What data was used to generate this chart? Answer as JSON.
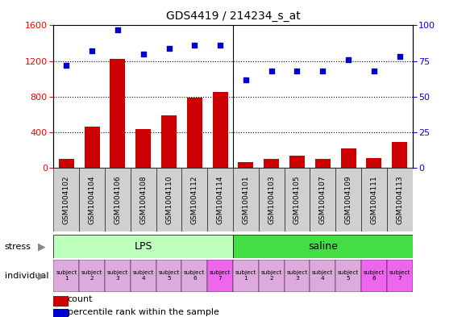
{
  "title": "GDS4419 / 214234_s_at",
  "samples": [
    "GSM1004102",
    "GSM1004104",
    "GSM1004106",
    "GSM1004108",
    "GSM1004110",
    "GSM1004112",
    "GSM1004114",
    "GSM1004101",
    "GSM1004103",
    "GSM1004105",
    "GSM1004107",
    "GSM1004109",
    "GSM1004111",
    "GSM1004113"
  ],
  "counts": [
    100,
    460,
    1220,
    440,
    590,
    790,
    850,
    70,
    100,
    140,
    100,
    220,
    110,
    290
  ],
  "percentiles": [
    72,
    82,
    97,
    80,
    84,
    86,
    86,
    62,
    68,
    68,
    68,
    76,
    68,
    78
  ],
  "bar_color": "#cc0000",
  "dot_color": "#0000cc",
  "ylim_left": [
    0,
    1600
  ],
  "ylim_right": [
    0,
    100
  ],
  "yticks_left": [
    0,
    400,
    800,
    1200,
    1600
  ],
  "yticks_right": [
    0,
    25,
    50,
    75,
    100
  ],
  "lps_color_light": "#bbffbb",
  "lps_color": "#aaddaa",
  "saline_color": "#44cc44",
  "ind_color_light": "#ddaadd",
  "ind_color_bright": "#ee66ee",
  "xticklabel_bg": "#d0d0d0",
  "plot_bg": "#ffffff",
  "all_ind_colors": [
    "#ddaadd",
    "#ddaadd",
    "#ddaadd",
    "#ddaadd",
    "#ddaadd",
    "#ddaadd",
    "#ee66ee",
    "#ddaadd",
    "#ddaadd",
    "#ddaadd",
    "#ddaadd",
    "#ddaadd",
    "#ee66ee",
    "#ee66ee"
  ],
  "lps_light": "#ccffcc",
  "saline_dark": "#44dd44"
}
